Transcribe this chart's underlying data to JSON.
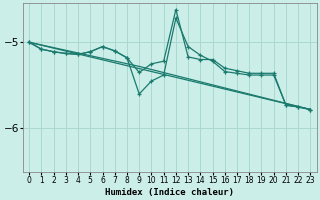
{
  "xlabel": "Humidex (Indice chaleur)",
  "bg_color": "#cceee8",
  "line_color": "#1a7a6e",
  "grid_color": "#aad8d0",
  "x_ticks": [
    0,
    1,
    2,
    3,
    4,
    5,
    6,
    7,
    8,
    9,
    10,
    11,
    12,
    13,
    14,
    15,
    16,
    17,
    18,
    19,
    20,
    21,
    22,
    23
  ],
  "y_ticks": [
    -5,
    -6
  ],
  "xlim": [
    -0.5,
    23.5
  ],
  "ylim": [
    -6.5,
    -4.55
  ],
  "line1_y": [
    -5.0,
    -5.08,
    -5.11,
    -5.13,
    -5.14,
    -5.11,
    -5.05,
    -5.1,
    -5.18,
    -5.35,
    -5.25,
    -5.22,
    -4.62,
    -5.17,
    -5.2,
    -5.2,
    -5.3,
    -5.33,
    -5.36,
    -5.36,
    -5.36,
    -5.73,
    -5.75,
    -5.78
  ],
  "line2_y": [
    -5.0,
    -5.08,
    -5.11,
    -5.13,
    -5.14,
    -5.11,
    -5.05,
    -5.1,
    -5.18,
    -5.6,
    -5.45,
    -5.38,
    -4.72,
    -5.05,
    -5.15,
    -5.22,
    -5.34,
    -5.36,
    -5.38,
    -5.38,
    -5.38,
    -5.73,
    -5.75,
    -5.78
  ],
  "trend1": [
    -5.0,
    -5.78
  ],
  "trend2_x": [
    0,
    9,
    23
  ],
  "trend2_y": [
    -5.0,
    -5.28,
    -5.78
  ]
}
